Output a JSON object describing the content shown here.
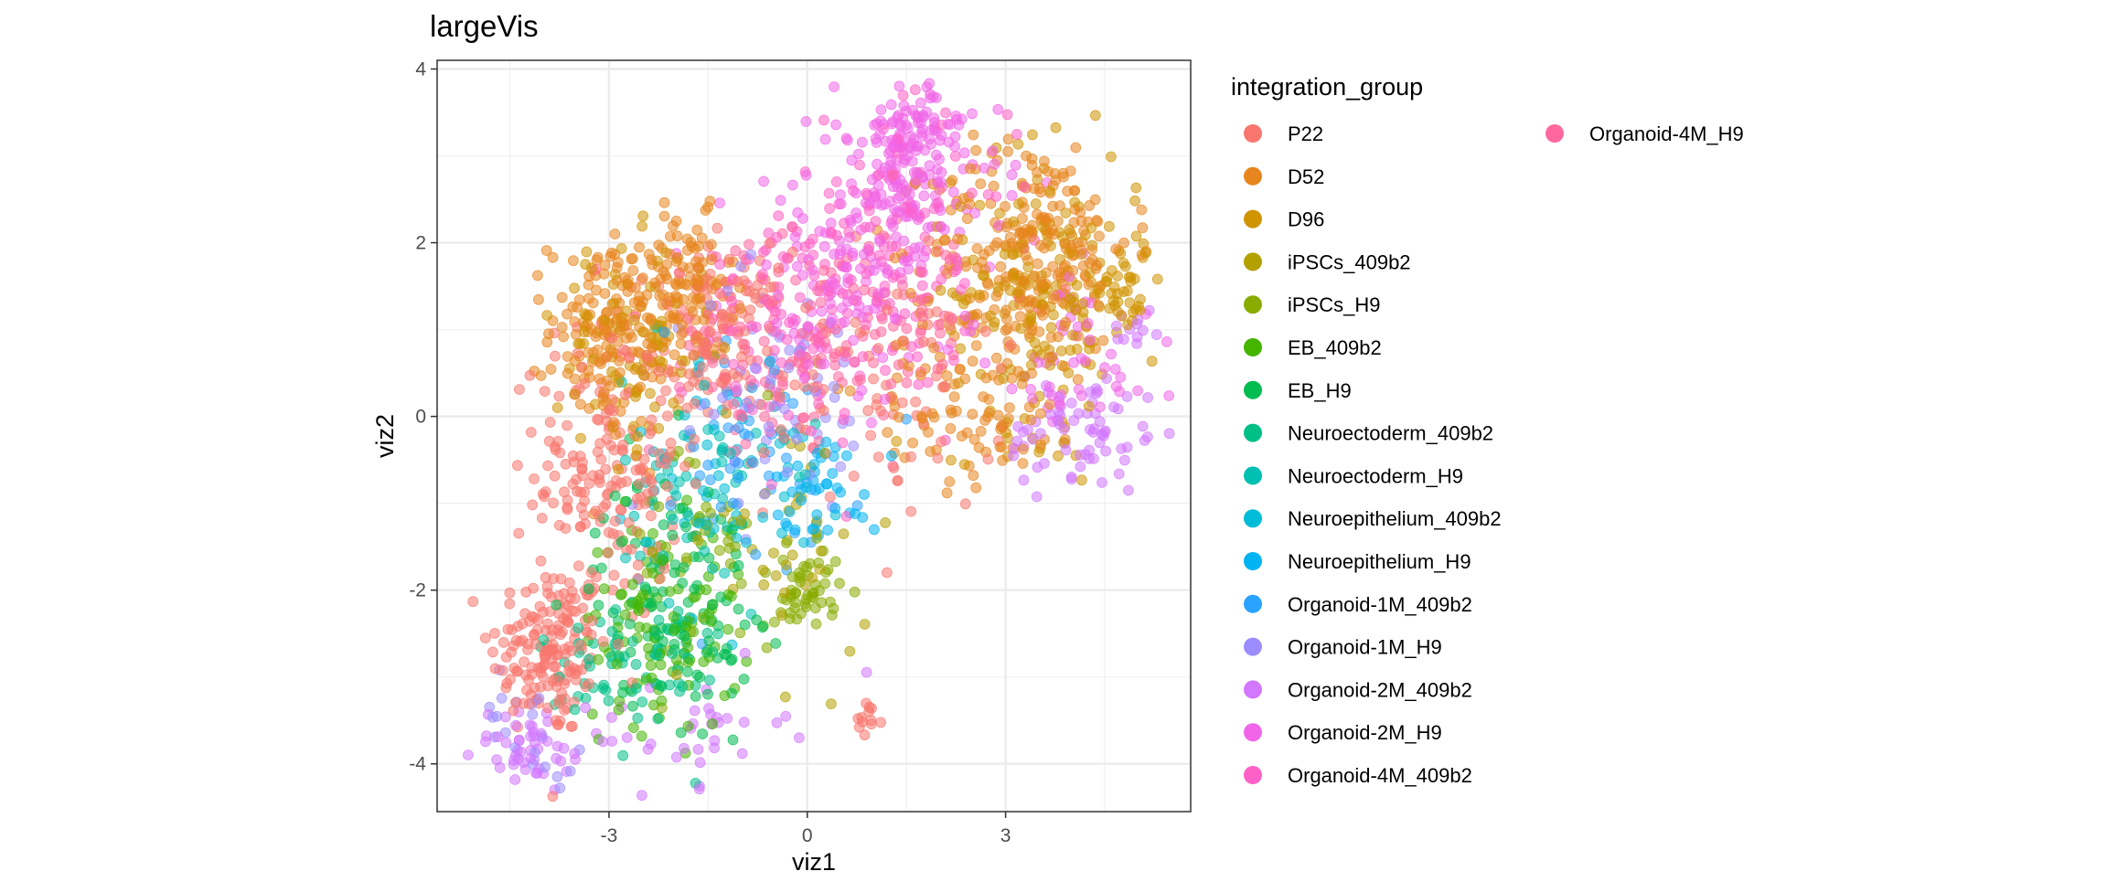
{
  "chart_data": {
    "type": "scatter",
    "title": "largeVis",
    "xlabel": "viz1",
    "ylabel": "viz2",
    "xlim": [
      -5.6,
      5.8
    ],
    "ylim": [
      -4.55,
      4.1
    ],
    "xticks": [
      -3,
      0,
      3
    ],
    "xtick_labels": [
      "-3",
      "0",
      "3"
    ],
    "yticks": [
      -4,
      -2,
      0,
      2,
      4
    ],
    "ytick_labels": [
      "-4",
      "-2",
      "0",
      "2",
      "4"
    ],
    "grid": true,
    "legend_title": "integration_group",
    "legend_position": "right",
    "groups": [
      {
        "name": "P22",
        "color": "#F8766D"
      },
      {
        "name": "D52",
        "color": "#E7851E"
      },
      {
        "name": "D96",
        "color": "#D09400"
      },
      {
        "name": "iPSCs_409b2",
        "color": "#B2A100"
      },
      {
        "name": "iPSCs_H9",
        "color": "#89AC00"
      },
      {
        "name": "EB_409b2",
        "color": "#45B500"
      },
      {
        "name": "EB_H9",
        "color": "#00BC51"
      },
      {
        "name": "Neuroectoderm_409b2",
        "color": "#00C087"
      },
      {
        "name": "Neuroectoderm_H9",
        "color": "#00C0B2"
      },
      {
        "name": "Neuroepithelium_409b2",
        "color": "#00BCD6"
      },
      {
        "name": "Neuroepithelium_H9",
        "color": "#00B3F2"
      },
      {
        "name": "Organoid-1M_409b2",
        "color": "#29A3FF"
      },
      {
        "name": "Organoid-1M_H9",
        "color": "#9C8DFF"
      },
      {
        "name": "Organoid-2M_409b2",
        "color": "#D277FF"
      },
      {
        "name": "Organoid-2M_H9",
        "color": "#F166E8"
      },
      {
        "name": "Organoid-4M_409b2",
        "color": "#FF61C7"
      },
      {
        "name": "Organoid-4M_H9",
        "color": "#FF689E"
      }
    ],
    "clusters": [
      {
        "group": "P22",
        "center": [
          -3.9,
          -2.7
        ],
        "spread": [
          0.45,
          0.5
        ],
        "n": 160
      },
      {
        "group": "P22",
        "center": [
          -3.0,
          -0.6
        ],
        "spread": [
          0.55,
          0.9
        ],
        "n": 200
      },
      {
        "group": "P22",
        "center": [
          -1.3,
          0.9
        ],
        "spread": [
          0.5,
          0.5
        ],
        "n": 120
      },
      {
        "group": "P22",
        "center": [
          0.9,
          -3.5
        ],
        "spread": [
          0.12,
          0.1
        ],
        "n": 12
      },
      {
        "group": "P22",
        "center": [
          1.2,
          0.4
        ],
        "spread": [
          0.9,
          0.8
        ],
        "n": 80
      },
      {
        "group": "D52",
        "center": [
          -3.0,
          1.0
        ],
        "spread": [
          0.45,
          0.55
        ],
        "n": 150
      },
      {
        "group": "D52",
        "center": [
          -1.8,
          1.5
        ],
        "spread": [
          0.35,
          0.4
        ],
        "n": 100
      },
      {
        "group": "D52",
        "center": [
          3.4,
          2.0
        ],
        "spread": [
          0.75,
          0.6
        ],
        "n": 220
      },
      {
        "group": "D52",
        "center": [
          2.6,
          0.4
        ],
        "spread": [
          0.8,
          0.6
        ],
        "n": 120
      },
      {
        "group": "D96",
        "center": [
          3.6,
          1.4
        ],
        "spread": [
          0.7,
          0.8
        ],
        "n": 180
      },
      {
        "group": "D96",
        "center": [
          -2.6,
          0.8
        ],
        "spread": [
          0.6,
          0.6
        ],
        "n": 100
      },
      {
        "group": "D96",
        "center": [
          4.8,
          1.5
        ],
        "spread": [
          0.2,
          0.3
        ],
        "n": 30
      },
      {
        "group": "iPSCs_409b2",
        "center": [
          -0.2,
          -1.5
        ],
        "spread": [
          0.6,
          0.8
        ],
        "n": 40
      },
      {
        "group": "iPSCs_H9",
        "center": [
          0.0,
          -2.0
        ],
        "spread": [
          0.25,
          0.25
        ],
        "n": 50
      },
      {
        "group": "iPSCs_H9",
        "center": [
          -1.5,
          -1.5
        ],
        "spread": [
          0.6,
          0.7
        ],
        "n": 40
      },
      {
        "group": "EB_409b2",
        "center": [
          -2.2,
          -2.4
        ],
        "spread": [
          0.6,
          0.6
        ],
        "n": 110
      },
      {
        "group": "EB_H9",
        "center": [
          -2.0,
          -2.0
        ],
        "spread": [
          0.6,
          0.7
        ],
        "n": 110
      },
      {
        "group": "Neuroectoderm_409b2",
        "center": [
          -2.6,
          -2.9
        ],
        "spread": [
          0.7,
          0.5
        ],
        "n": 70
      },
      {
        "group": "Neuroectoderm_H9",
        "center": [
          -1.6,
          -0.9
        ],
        "spread": [
          0.6,
          0.7
        ],
        "n": 60
      },
      {
        "group": "Neuroepithelium_409b2",
        "center": [
          -1.2,
          -0.6
        ],
        "spread": [
          0.7,
          0.7
        ],
        "n": 50
      },
      {
        "group": "Neuroepithelium_H9",
        "center": [
          0.3,
          -0.8
        ],
        "spread": [
          0.4,
          0.3
        ],
        "n": 40
      },
      {
        "group": "Organoid-1M_409b2",
        "center": [
          -1.0,
          -0.5
        ],
        "spread": [
          0.9,
          0.8
        ],
        "n": 50
      },
      {
        "group": "Organoid-1M_H9",
        "center": [
          -0.5,
          0.2
        ],
        "spread": [
          0.8,
          0.7
        ],
        "n": 60
      },
      {
        "group": "Organoid-1M_H9",
        "center": [
          -4.2,
          -3.5
        ],
        "spread": [
          0.4,
          0.3
        ],
        "n": 20
      },
      {
        "group": "Organoid-2M_409b2",
        "center": [
          -4.2,
          -3.8
        ],
        "spread": [
          0.4,
          0.25
        ],
        "n": 45
      },
      {
        "group": "Organoid-2M_409b2",
        "center": [
          4.2,
          -0.2
        ],
        "spread": [
          0.6,
          0.35
        ],
        "n": 70
      },
      {
        "group": "Organoid-2M_409b2",
        "center": [
          -2.0,
          -3.6
        ],
        "spread": [
          0.8,
          0.3
        ],
        "n": 40
      },
      {
        "group": "Organoid-2M_409b2",
        "center": [
          4.9,
          1.0
        ],
        "spread": [
          0.2,
          0.1
        ],
        "n": 12
      },
      {
        "group": "Organoid-2M_H9",
        "center": [
          1.5,
          2.6
        ],
        "spread": [
          0.7,
          0.5
        ],
        "n": 150
      },
      {
        "group": "Organoid-2M_H9",
        "center": [
          1.6,
          3.3
        ],
        "spread": [
          0.4,
          0.25
        ],
        "n": 70
      },
      {
        "group": "Organoid-2M_H9",
        "center": [
          0.5,
          1.4
        ],
        "spread": [
          0.9,
          0.6
        ],
        "n": 110
      },
      {
        "group": "Organoid-2M_H9",
        "center": [
          4.0,
          0.6
        ],
        "spread": [
          0.6,
          0.5
        ],
        "n": 50
      },
      {
        "group": "Organoid-4M_409b2",
        "center": [
          1.3,
          1.9
        ],
        "spread": [
          0.9,
          0.7
        ],
        "n": 120
      },
      {
        "group": "Organoid-4M_409b2",
        "center": [
          -0.4,
          0.9
        ],
        "spread": [
          0.6,
          0.6
        ],
        "n": 60
      },
      {
        "group": "Organoid-4M_H9",
        "center": [
          -0.8,
          0.7
        ],
        "spread": [
          0.8,
          0.6
        ],
        "n": 80
      },
      {
        "group": "Organoid-4M_H9",
        "center": [
          1.0,
          1.0
        ],
        "spread": [
          0.8,
          0.6
        ],
        "n": 70
      }
    ]
  }
}
